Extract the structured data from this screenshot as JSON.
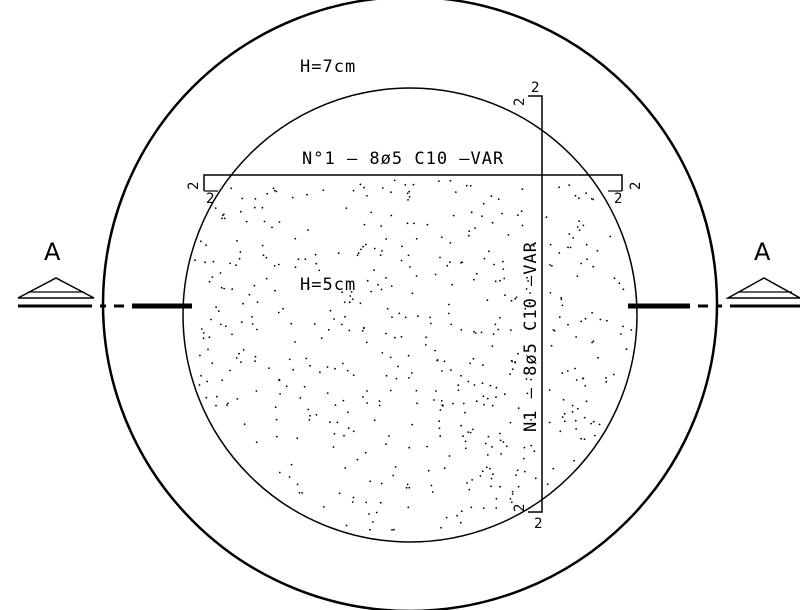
{
  "drawing": {
    "outer_slab_thickness": "H=7cm",
    "inner_slab_thickness": "H=5cm",
    "horizontal_rebar": "N°1  –  8ø5  C10  –VAR",
    "vertical_rebar": "N1  –  8ø5  C10  –VAR",
    "hook_length": "2",
    "section_mark_left": "A",
    "section_mark_right": "A",
    "line_color": "#000000",
    "background_color": "#ffffff"
  }
}
